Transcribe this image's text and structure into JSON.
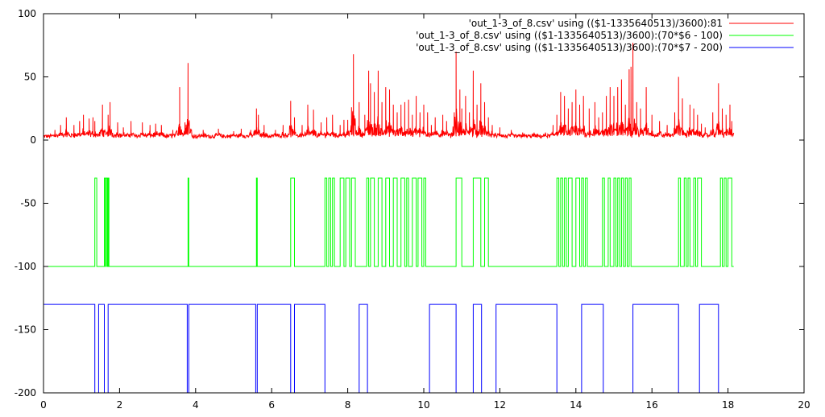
{
  "chart_data": {
    "type": "line",
    "title": "",
    "xlabel": "",
    "ylabel": "",
    "xlim": [
      0,
      20
    ],
    "ylim": [
      -200,
      100
    ],
    "grid": false,
    "legend_position": "top-right",
    "x_ticks": [
      0,
      2,
      4,
      6,
      8,
      10,
      12,
      14,
      16,
      18,
      20
    ],
    "x_tick_labels": [
      "0",
      "2",
      "4",
      "6",
      "8",
      "10",
      "12",
      "14",
      "16",
      "18",
      "20"
    ],
    "y_ticks": [
      100,
      50,
      0,
      -50,
      -100,
      -150,
      -200
    ],
    "y_tick_labels": [
      "100",
      "50",
      "0",
      "-50",
      "-100",
      "-150",
      "-200"
    ],
    "series": [
      {
        "name": "'out_1-3_of_8.csv' using (($1-1335640513)/3600):81",
        "color": "#ff0000",
        "style": "noisy",
        "x_range": [
          0,
          18.15
        ],
        "baseline": 3,
        "spikes": [
          [
            0.3,
            8
          ],
          [
            0.45,
            12
          ],
          [
            0.6,
            18
          ],
          [
            0.8,
            12
          ],
          [
            0.95,
            15
          ],
          [
            1.05,
            20
          ],
          [
            1.2,
            17
          ],
          [
            1.3,
            18
          ],
          [
            1.35,
            15
          ],
          [
            1.55,
            28
          ],
          [
            1.7,
            20
          ],
          [
            1.75,
            30
          ],
          [
            1.95,
            14
          ],
          [
            2.1,
            10
          ],
          [
            2.3,
            15
          ],
          [
            2.6,
            14
          ],
          [
            2.8,
            12
          ],
          [
            2.95,
            13
          ],
          [
            3.1,
            12
          ],
          [
            3.4,
            8
          ],
          [
            3.55,
            10
          ],
          [
            3.58,
            42
          ],
          [
            3.72,
            14
          ],
          [
            3.8,
            61
          ],
          [
            4.2,
            8
          ],
          [
            4.6,
            9
          ],
          [
            5.0,
            7
          ],
          [
            5.2,
            9
          ],
          [
            5.45,
            8
          ],
          [
            5.55,
            8
          ],
          [
            5.6,
            25
          ],
          [
            5.65,
            20
          ],
          [
            5.8,
            12
          ],
          [
            6.1,
            8
          ],
          [
            6.3,
            12
          ],
          [
            6.5,
            31
          ],
          [
            6.6,
            18
          ],
          [
            6.8,
            12
          ],
          [
            6.95,
            28
          ],
          [
            7.1,
            24
          ],
          [
            7.3,
            14
          ],
          [
            7.45,
            18
          ],
          [
            7.6,
            20
          ],
          [
            7.8,
            12
          ],
          [
            7.9,
            16
          ],
          [
            8.0,
            16
          ],
          [
            8.1,
            26
          ],
          [
            8.15,
            68
          ],
          [
            8.3,
            30
          ],
          [
            8.45,
            20
          ],
          [
            8.55,
            55
          ],
          [
            8.6,
            45
          ],
          [
            8.7,
            38
          ],
          [
            8.8,
            55
          ],
          [
            8.9,
            30
          ],
          [
            9.0,
            42
          ],
          [
            9.1,
            40
          ],
          [
            9.2,
            28
          ],
          [
            9.3,
            22
          ],
          [
            9.4,
            28
          ],
          [
            9.5,
            30
          ],
          [
            9.6,
            32
          ],
          [
            9.7,
            20
          ],
          [
            9.8,
            35
          ],
          [
            9.9,
            22
          ],
          [
            10.0,
            28
          ],
          [
            10.1,
            22
          ],
          [
            10.2,
            12
          ],
          [
            10.3,
            18
          ],
          [
            10.5,
            20
          ],
          [
            10.6,
            15
          ],
          [
            10.8,
            22
          ],
          [
            10.85,
            70
          ],
          [
            10.95,
            40
          ],
          [
            11.0,
            25
          ],
          [
            11.1,
            35
          ],
          [
            11.2,
            22
          ],
          [
            11.3,
            55
          ],
          [
            11.4,
            28
          ],
          [
            11.5,
            45
          ],
          [
            11.6,
            30
          ],
          [
            11.7,
            18
          ],
          [
            11.8,
            12
          ],
          [
            12.0,
            10
          ],
          [
            12.3,
            8
          ],
          [
            12.6,
            6
          ],
          [
            12.9,
            6
          ],
          [
            13.2,
            6
          ],
          [
            13.4,
            12
          ],
          [
            13.5,
            20
          ],
          [
            13.6,
            38
          ],
          [
            13.7,
            35
          ],
          [
            13.8,
            25
          ],
          [
            13.9,
            30
          ],
          [
            14.0,
            40
          ],
          [
            14.1,
            28
          ],
          [
            14.2,
            35
          ],
          [
            14.35,
            25
          ],
          [
            14.5,
            30
          ],
          [
            14.6,
            18
          ],
          [
            14.7,
            22
          ],
          [
            14.8,
            35
          ],
          [
            14.9,
            42
          ],
          [
            15.0,
            35
          ],
          [
            15.1,
            42
          ],
          [
            15.2,
            48
          ],
          [
            15.3,
            28
          ],
          [
            15.4,
            56
          ],
          [
            15.45,
            58
          ],
          [
            15.5,
            77
          ],
          [
            15.6,
            30
          ],
          [
            15.7,
            25
          ],
          [
            15.85,
            42
          ],
          [
            16.0,
            20
          ],
          [
            16.2,
            15
          ],
          [
            16.4,
            12
          ],
          [
            16.6,
            22
          ],
          [
            16.7,
            50
          ],
          [
            16.8,
            33
          ],
          [
            17.0,
            28
          ],
          [
            17.1,
            25
          ],
          [
            17.2,
            20
          ],
          [
            17.3,
            13
          ],
          [
            17.4,
            10
          ],
          [
            17.6,
            22
          ],
          [
            17.75,
            45
          ],
          [
            17.85,
            25
          ],
          [
            17.95,
            20
          ],
          [
            18.05,
            28
          ],
          [
            18.1,
            15
          ]
        ]
      },
      {
        "name": "'out_1-3_of_8.csv' using (($1-1335640513)/3600):(70*$6 - 100)",
        "color": "#00ff00",
        "style": "step",
        "low": -100,
        "high": -30,
        "x_range": [
          0,
          18.15
        ],
        "high_intervals": [
          [
            1.35,
            1.4
          ],
          [
            1.6,
            1.63
          ],
          [
            1.65,
            1.68
          ],
          [
            1.7,
            1.72
          ],
          [
            3.8,
            3.82
          ],
          [
            5.6,
            5.62
          ],
          [
            6.5,
            6.6
          ],
          [
            7.4,
            7.45
          ],
          [
            7.5,
            7.55
          ],
          [
            7.6,
            7.65
          ],
          [
            7.8,
            7.9
          ],
          [
            7.95,
            8.05
          ],
          [
            8.1,
            8.2
          ],
          [
            8.5,
            8.55
          ],
          [
            8.6,
            8.7
          ],
          [
            8.8,
            8.9
          ],
          [
            9.0,
            9.1
          ],
          [
            9.2,
            9.3
          ],
          [
            9.4,
            9.5
          ],
          [
            9.55,
            9.6
          ],
          [
            9.7,
            9.8
          ],
          [
            9.85,
            9.95
          ],
          [
            10.0,
            10.05
          ],
          [
            10.85,
            11.0
          ],
          [
            11.3,
            11.5
          ],
          [
            11.6,
            11.7
          ],
          [
            13.5,
            13.55
          ],
          [
            13.6,
            13.65
          ],
          [
            13.7,
            13.75
          ],
          [
            13.8,
            13.9
          ],
          [
            14.0,
            14.1
          ],
          [
            14.15,
            14.2
          ],
          [
            14.25,
            14.3
          ],
          [
            14.7,
            14.75
          ],
          [
            14.85,
            14.9
          ],
          [
            15.0,
            15.05
          ],
          [
            15.1,
            15.15
          ],
          [
            15.2,
            15.25
          ],
          [
            15.3,
            15.35
          ],
          [
            15.4,
            15.45
          ],
          [
            16.7,
            16.75
          ],
          [
            16.85,
            16.9
          ],
          [
            16.95,
            17.0
          ],
          [
            17.1,
            17.15
          ],
          [
            17.2,
            17.3
          ],
          [
            17.8,
            17.85
          ],
          [
            17.9,
            17.95
          ],
          [
            18.0,
            18.1
          ]
        ]
      },
      {
        "name": "'out_1-3_of_8.csv' using (($1-1335640513)/3600):(70*$7 - 200)",
        "color": "#0000ff",
        "style": "step",
        "low": -200,
        "high": -130,
        "x_range": [
          0,
          18.15
        ],
        "high_intervals": [
          [
            0,
            1.35
          ],
          [
            1.45,
            1.6
          ],
          [
            1.7,
            3.78
          ],
          [
            3.82,
            5.58
          ],
          [
            5.62,
            6.5
          ],
          [
            6.6,
            7.4
          ],
          [
            8.3,
            8.52
          ],
          [
            10.15,
            10.85
          ],
          [
            11.3,
            11.52
          ],
          [
            11.9,
            13.5
          ],
          [
            14.15,
            14.72
          ],
          [
            15.5,
            16.7
          ],
          [
            17.25,
            17.75
          ]
        ]
      }
    ]
  }
}
